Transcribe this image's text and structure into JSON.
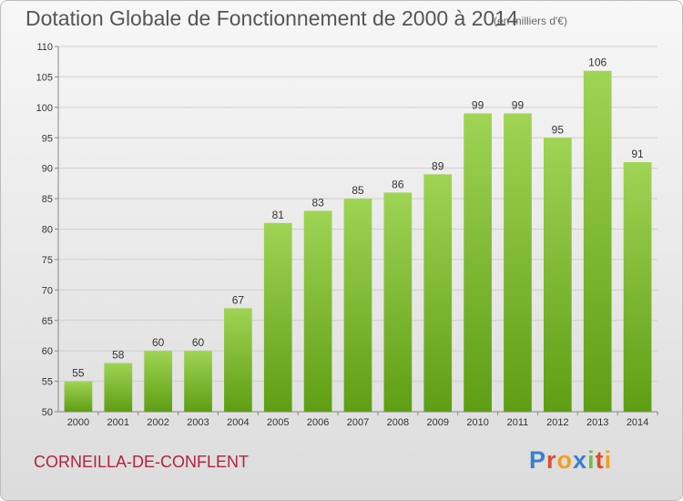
{
  "header": {
    "title": "Dotation Globale de Fonctionnement de 2000 à 2014",
    "unit": "(en milliers d'€)"
  },
  "footer": {
    "commune": "CORNEILLA-DE-CONFLENT",
    "brand_letters": [
      "P",
      "r",
      "o",
      "x",
      "i",
      "t",
      "i"
    ],
    "brand_colors": [
      "#3a7fd0",
      "#e14b2d",
      "#f0a020",
      "#3a7fd0",
      "#6cc04a",
      "#e14b2d",
      "#f0a020"
    ]
  },
  "colors": {
    "bar_top": "#9fd454",
    "bar_bottom": "#5e9e14",
    "grid": "#cfcfcf",
    "axis": "#888888"
  },
  "chart_data": {
    "type": "bar",
    "title": "Dotation Globale de Fonctionnement de 2000 à 2014",
    "xlabel": "",
    "ylabel": "",
    "ylim": [
      50,
      110
    ],
    "yticks": [
      50,
      55,
      60,
      65,
      70,
      75,
      80,
      85,
      90,
      95,
      100,
      105,
      110
    ],
    "grid": true,
    "legend": "none",
    "categories": [
      "2000",
      "2001",
      "2002",
      "2003",
      "2004",
      "2005",
      "2006",
      "2007",
      "2008",
      "2009",
      "2010",
      "2011",
      "2012",
      "2013",
      "2014"
    ],
    "values": [
      55,
      58,
      60,
      60,
      67,
      81,
      83,
      85,
      86,
      89,
      99,
      99,
      95,
      106,
      91
    ]
  }
}
